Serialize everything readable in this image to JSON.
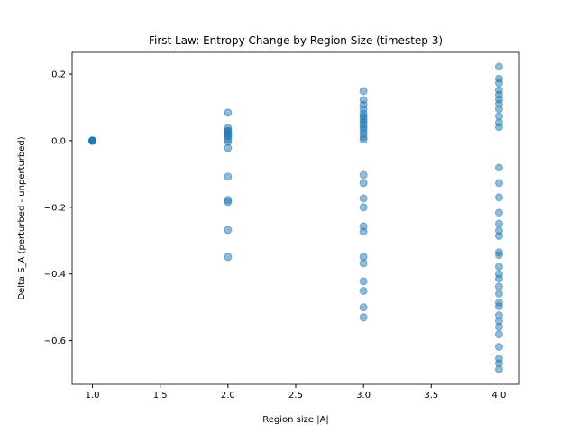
{
  "chart_data": {
    "type": "scatter",
    "title": "First Law: Entropy Change by Region Size (timestep 3)",
    "xlabel": "Region size |A|",
    "ylabel": "Delta S_A (perturbed - unperturbed)",
    "color": "#1f77b4",
    "xlim": [
      0.85,
      4.15
    ],
    "ylim": [
      -0.731,
      0.265
    ],
    "xticks": [
      {
        "value": 1,
        "label": "1.0"
      },
      1.5,
      {
        "value": 2,
        "label": "2.0"
      },
      2.5,
      {
        "value": 3,
        "label": "3.0"
      },
      3.5,
      {
        "value": 4,
        "label": "4.0"
      }
    ],
    "yticks": [
      {
        "value": -0.6,
        "label": "−0.6"
      },
      {
        "value": -0.4,
        "label": "−0.4"
      },
      {
        "value": -0.2,
        "label": "−0.2"
      },
      {
        "value": 0,
        "label": "0.0"
      },
      0.2
    ],
    "x": [
      1,
      1,
      1,
      1,
      1,
      1,
      2,
      2,
      2,
      2,
      2,
      2,
      2,
      2,
      2,
      2,
      2,
      2,
      2,
      2,
      2,
      3,
      3,
      3,
      3,
      3,
      3,
      3,
      3,
      3,
      3,
      3,
      3,
      3,
      3,
      3,
      3,
      3,
      3,
      3,
      3,
      3,
      3,
      3,
      3,
      3,
      3,
      4,
      4,
      4,
      4,
      4,
      4,
      4,
      4,
      4,
      4,
      4,
      4,
      4,
      4,
      4,
      4,
      4,
      4,
      4,
      4,
      4,
      4,
      4,
      4,
      4,
      4,
      4,
      4,
      4,
      4,
      4,
      4,
      4,
      4,
      4
    ],
    "values": [
      0,
      0,
      0,
      0,
      0,
      0,
      0.084,
      0.038,
      0.03,
      0.027,
      0.022,
      0.016,
      0.014,
      0.005,
      -0.003,
      -0.022,
      -0.108,
      -0.178,
      -0.184,
      -0.268,
      -0.349,
      0.149,
      0.122,
      0.108,
      0.095,
      0.081,
      0.073,
      0.065,
      0.057,
      0.049,
      0.041,
      0.032,
      0.022,
      0.011,
      0.003,
      -0.103,
      -0.127,
      -0.173,
      -0.2,
      -0.257,
      -0.273,
      -0.349,
      -0.368,
      -0.422,
      -0.451,
      -0.5,
      -0.53,
      0.222,
      0.186,
      0.173,
      0.151,
      0.138,
      0.124,
      0.111,
      0.095,
      0.073,
      0.054,
      0.041,
      -0.081,
      -0.127,
      -0.17,
      -0.216,
      -0.249,
      -0.27,
      -0.286,
      -0.335,
      -0.343,
      -0.378,
      -0.4,
      -0.414,
      -0.438,
      -0.459,
      -0.486,
      -0.497,
      -0.524,
      -0.541,
      -0.559,
      -0.581,
      -0.619,
      -0.654,
      -0.668,
      -0.686
    ]
  }
}
